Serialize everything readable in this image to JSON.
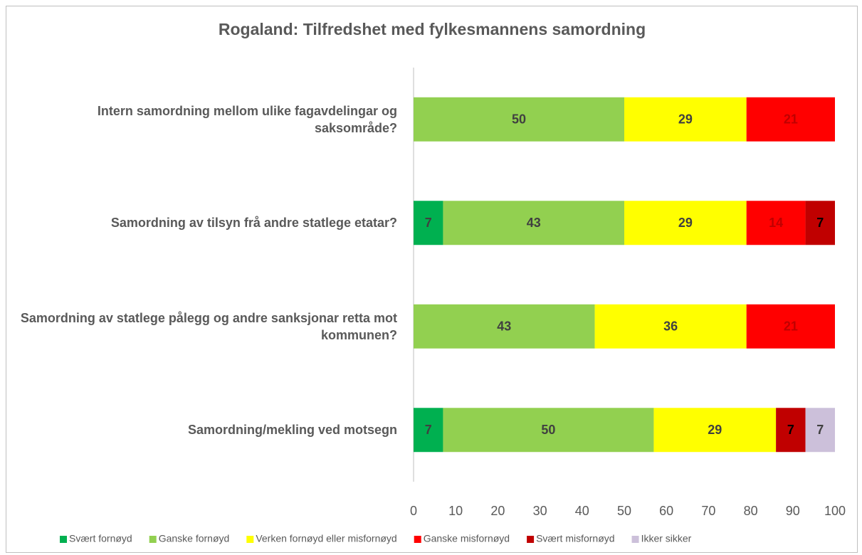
{
  "chart_data": {
    "type": "stacked_barh",
    "title": "Rogaland: Tilfredshet med fylkesmannens samordning",
    "categories": [
      "Intern samordning mellom ulike fagavdelingar og saksområde?",
      "Samordning av tilsyn frå andre statlege etatar?",
      "Samordning av statlege pålegg og andre sanksjonar retta mot kommunen?",
      "Samordning/mekling ved motsegn"
    ],
    "series": [
      {
        "name": "Svært fornøyd",
        "color": "#00b050",
        "label_color": "#404040",
        "values": [
          null,
          7,
          null,
          7
        ]
      },
      {
        "name": "Ganske fornøyd",
        "color": "#92d050",
        "label_color": "#404040",
        "values": [
          50,
          43,
          43,
          50
        ]
      },
      {
        "name": "Verken fornøyd eller misfornøyd",
        "color": "#ffff00",
        "label_color": "#404040",
        "values": [
          29,
          29,
          36,
          29
        ]
      },
      {
        "name": "Ganske misfornøyd",
        "color": "#ff0000",
        "label_color": "#c00000",
        "values": [
          21,
          14,
          21,
          null
        ]
      },
      {
        "name": "Svært misfornøyd",
        "color": "#c00000",
        "label_color": "#000000",
        "values": [
          null,
          7,
          null,
          7
        ]
      },
      {
        "name": "Ikker sikker",
        "color": "#ccc0da",
        "label_color": "#404040",
        "values": [
          null,
          null,
          null,
          7
        ]
      }
    ],
    "xlim": [
      0,
      100
    ],
    "xticks": [
      0,
      10,
      20,
      30,
      40,
      50,
      60,
      70,
      80,
      90,
      100
    ],
    "grid": false,
    "legend": "bottom"
  }
}
